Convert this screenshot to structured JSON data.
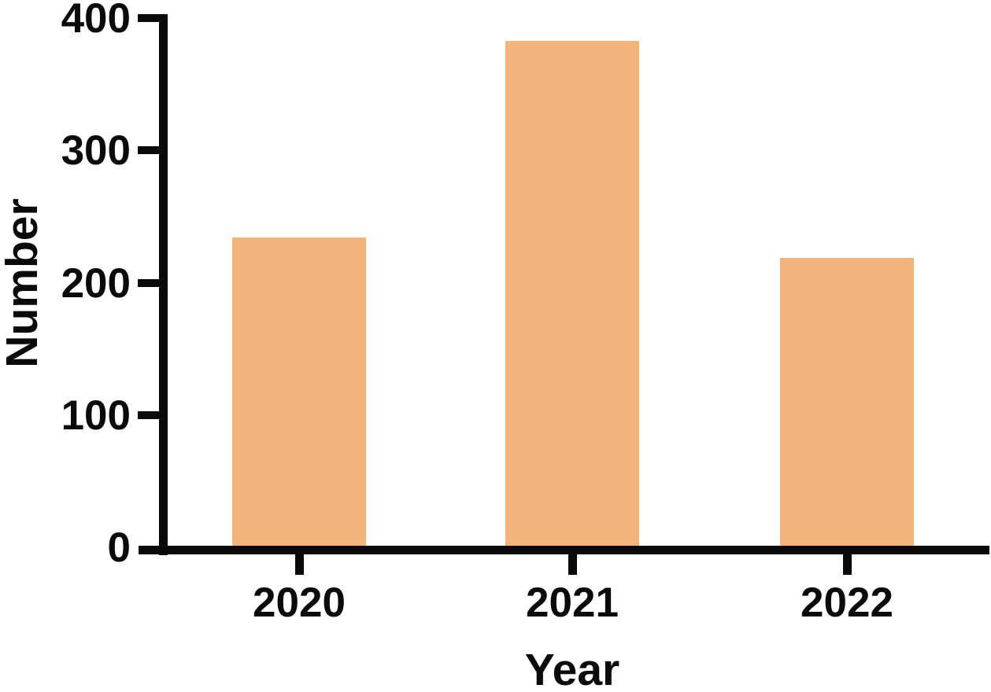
{
  "chart_data": {
    "type": "bar",
    "title": "",
    "categories": [
      "2020",
      "2021",
      "2022"
    ],
    "values": [
      234,
      383,
      219
    ],
    "xlabel": "Year",
    "ylabel": "Number",
    "ylim": [
      0,
      400
    ],
    "yticks": [
      0,
      100,
      200,
      300,
      400
    ],
    "grid": false,
    "legend_position": "none",
    "bar_color": "#F1B47A",
    "axis_color": "#0A0A0A"
  }
}
